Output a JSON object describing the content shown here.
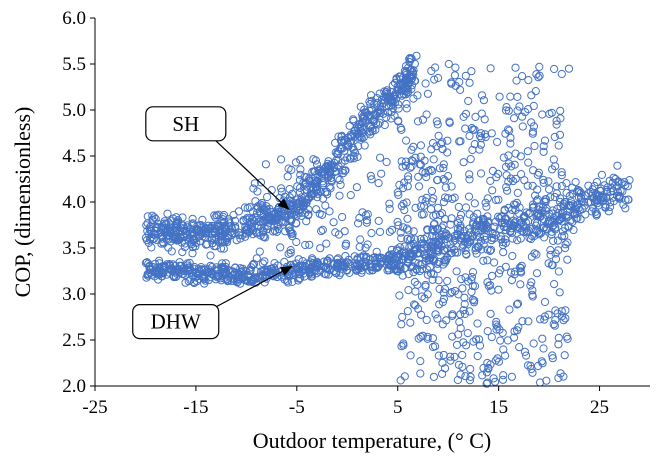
{
  "chart_data": {
    "type": "scatter",
    "title": "",
    "xlabel": "Outdoor temperature, (° C)",
    "ylabel": "COP, (dimensionless)",
    "xlim": [
      -25,
      30
    ],
    "ylim": [
      2.0,
      6.0
    ],
    "x_ticks": [
      -25,
      -15,
      -5,
      5,
      15,
      25
    ],
    "y_ticks": [
      2.0,
      2.5,
      3.0,
      3.5,
      4.0,
      4.5,
      5.0,
      5.5,
      6.0
    ],
    "grid": false,
    "marker": "open-circle",
    "marker_color": "#4472C4",
    "series": [
      {
        "name": "SH",
        "trend": [
          {
            "x": -20,
            "y": 3.7
          },
          {
            "x": -14,
            "y": 3.62
          },
          {
            "x": -10,
            "y": 3.75
          },
          {
            "x": -5,
            "y": 3.95
          },
          {
            "x": -2,
            "y": 4.3
          },
          {
            "x": 1,
            "y": 4.75
          },
          {
            "x": 4,
            "y": 5.1
          },
          {
            "x": 7,
            "y": 5.45
          }
        ]
      },
      {
        "name": "DHW",
        "trend": [
          {
            "x": -20,
            "y": 3.27
          },
          {
            "x": -10,
            "y": 3.2
          },
          {
            "x": 0,
            "y": 3.3
          },
          {
            "x": 5,
            "y": 3.35
          },
          {
            "x": 10,
            "y": 3.55
          },
          {
            "x": 15,
            "y": 3.75
          },
          {
            "x": 20,
            "y": 3.85
          },
          {
            "x": 25,
            "y": 4.05
          },
          {
            "x": 28,
            "y": 4.15
          }
        ]
      }
    ],
    "scatter_region": {
      "x_range": [
        5,
        22
      ],
      "y_range": [
        2.0,
        5.5
      ]
    },
    "annotations": [
      {
        "label": "SH",
        "box_center": [
          -16,
          4.85
        ],
        "arrow_to": [
          -5.8,
          3.92
        ]
      },
      {
        "label": "DHW",
        "box_center": [
          -17,
          2.7
        ],
        "arrow_to": [
          -5.5,
          3.3
        ]
      }
    ]
  }
}
